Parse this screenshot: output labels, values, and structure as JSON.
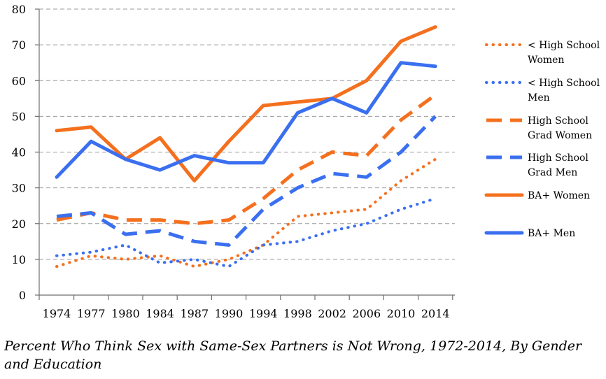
{
  "caption": "Percent Who Think Sex with Same-Sex Partners is Not Wrong, 1972-2014, By Gender and Education",
  "colors": {
    "women": "#f4701e",
    "men": "#3a6ff0",
    "grid": "#9a9a9a",
    "axis": "#6e6e6e"
  },
  "chart_data": {
    "type": "line",
    "title": "",
    "xlabel": "",
    "ylabel": "",
    "categories": [
      "1974",
      "1977",
      "1980",
      "1984",
      "1987",
      "1990",
      "1994",
      "1998",
      "2002",
      "2006",
      "2010",
      "2014"
    ],
    "ylim": [
      0,
      80
    ],
    "yticks": [
      0,
      10,
      20,
      30,
      40,
      50,
      60,
      70,
      80
    ],
    "grid": "horizontal dashed",
    "legend_position": "right",
    "series": [
      {
        "name": [
          "< High School",
          "Women"
        ],
        "style": "dotted",
        "color": "#f4701e",
        "values": [
          8,
          11,
          10,
          11,
          8,
          10,
          14,
          22,
          23,
          24,
          32,
          38
        ]
      },
      {
        "name": [
          "< High School",
          "Men"
        ],
        "style": "dotted",
        "color": "#3a6ff0",
        "values": [
          11,
          12,
          14,
          9,
          10,
          8,
          14,
          15,
          18,
          20,
          24,
          27
        ]
      },
      {
        "name": [
          "High School",
          "Grad Women"
        ],
        "style": "dashed",
        "color": "#f4701e",
        "values": [
          21,
          23,
          21,
          21,
          20,
          21,
          27,
          35,
          40,
          39,
          49,
          56
        ]
      },
      {
        "name": [
          "High School",
          "Grad Men"
        ],
        "style": "dashed",
        "color": "#3a6ff0",
        "values": [
          22,
          23,
          17,
          18,
          15,
          14,
          24,
          30,
          34,
          33,
          40,
          50
        ]
      },
      {
        "name": [
          "BA+ Women"
        ],
        "style": "solid",
        "color": "#f4701e",
        "values": [
          46,
          47,
          38,
          44,
          32,
          43,
          53,
          54,
          55,
          60,
          71,
          75
        ]
      },
      {
        "name": [
          "BA+ Men"
        ],
        "style": "solid",
        "color": "#3a6ff0",
        "values": [
          33,
          43,
          38,
          35,
          39,
          37,
          37,
          51,
          55,
          51,
          65,
          64
        ]
      }
    ]
  }
}
